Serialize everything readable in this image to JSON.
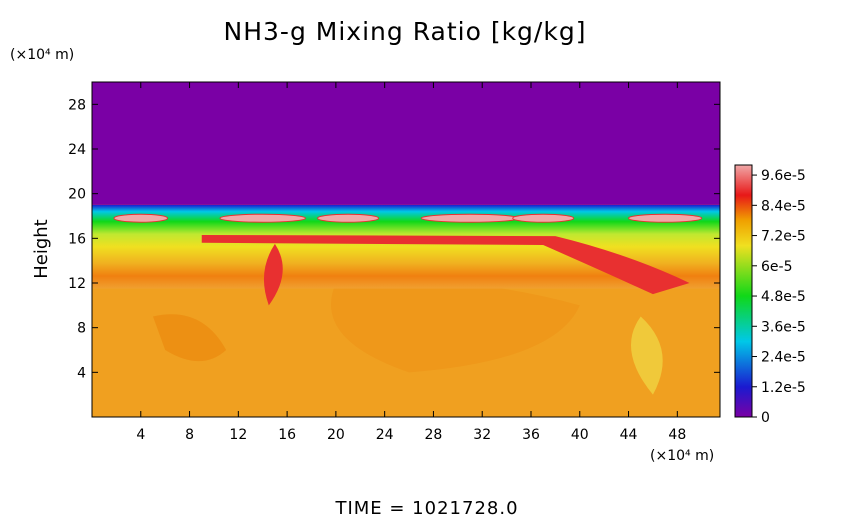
{
  "chart_data": {
    "type": "heatmap",
    "title": "NH3-g Mixing Ratio [kg/kg]",
    "ylabel": "Height",
    "x_unit": "(×10⁴ m)",
    "y_unit": "(×10⁴ m)",
    "xlim": [
      0,
      51.5
    ],
    "ylim": [
      0,
      30
    ],
    "x_ticks": [
      4,
      8,
      12,
      16,
      20,
      24,
      28,
      32,
      36,
      40,
      44,
      48
    ],
    "x_tick_labels": [
      "4",
      "8",
      "12",
      "16",
      "20",
      "24",
      "28",
      "32",
      "36",
      "40",
      "44",
      "48"
    ],
    "y_ticks": [
      4,
      8,
      12,
      16,
      20,
      24,
      28
    ],
    "y_tick_labels": [
      "4",
      "8",
      "12",
      "16",
      "20",
      "24",
      "28"
    ],
    "colorbar": {
      "vmin": 0,
      "vmax": 0.0001,
      "tick_values": [
        0,
        1.2e-05,
        2.4e-05,
        3.6e-05,
        4.8e-05,
        6e-05,
        7.2e-05,
        8.4e-05,
        9.6e-05
      ],
      "tick_labels": [
        "0",
        "1.2e-5",
        "2.4e-5",
        "3.6e-5",
        "4.8e-5",
        "6e-5",
        "7.2e-5",
        "8.4e-5",
        "9.6e-5"
      ],
      "color_stops": [
        "#7a00a5",
        "#1a1ad0",
        "#00c8e8",
        "#10d818",
        "#f0e020",
        "#f0a000",
        "#e81818",
        "#f0a8a8"
      ]
    },
    "fields": {
      "upper_layer_top": 19,
      "upper_layer_value": 0,
      "lower_layer_value": 7.8e-05,
      "lower_layer_top": 15.5,
      "band_peak_value": 9.8e-05,
      "band_peak_height": 17.8
    },
    "time_label": "TIME  =  1021728.0"
  }
}
